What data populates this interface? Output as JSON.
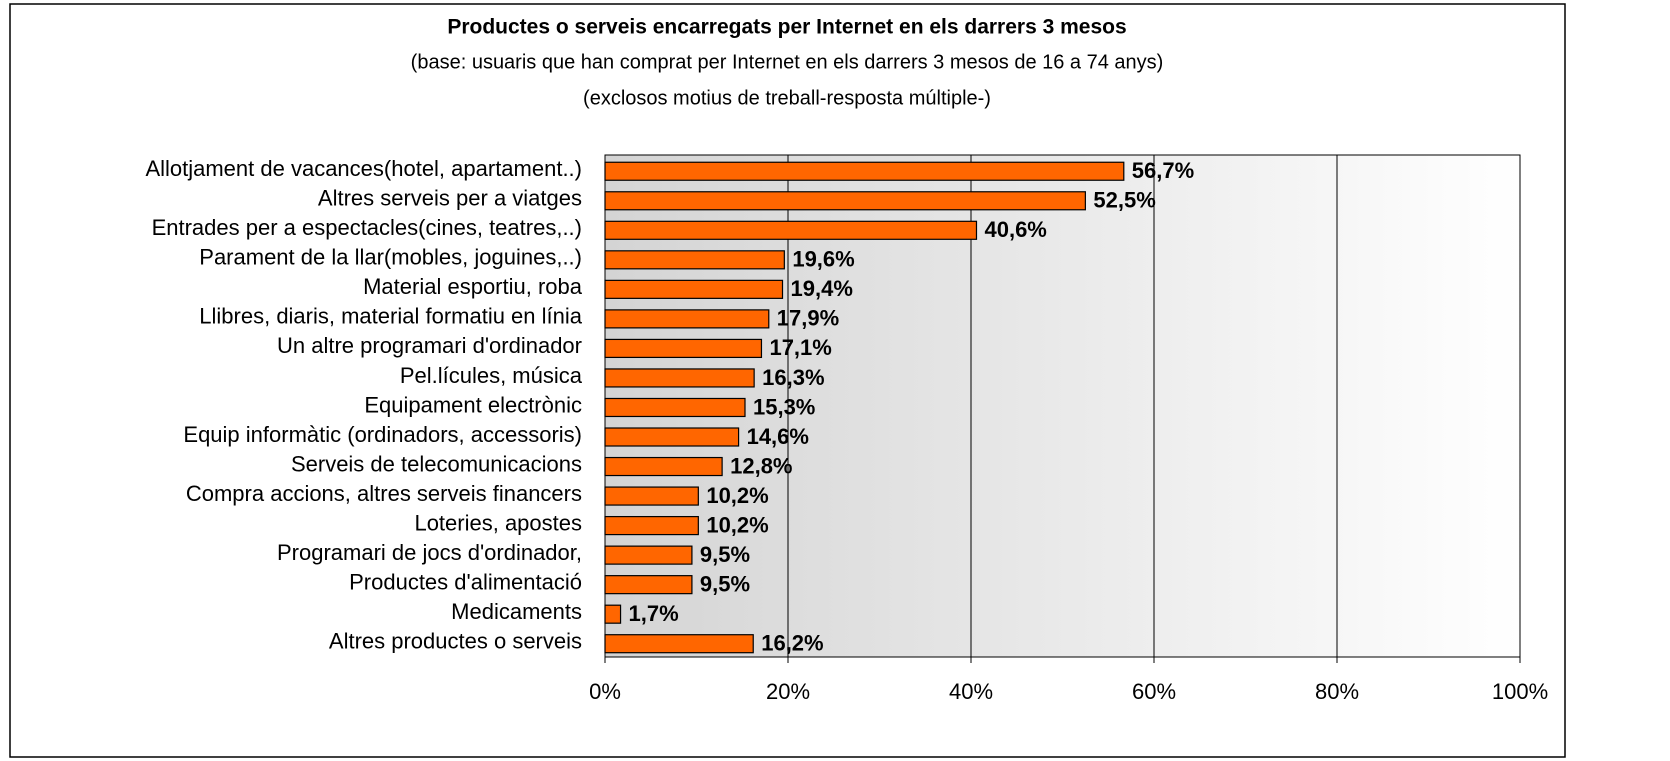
{
  "chart_data": {
    "type": "bar",
    "orientation": "horizontal",
    "title": "Productes o serveis encarregats per Internet en els darrers 3 mesos",
    "subtitle": [
      "(base: usuaris que han comprat per Internet en els darrers 3 mesos de 16 a 74 anys)",
      "(exclosos motius de treball-resposta múltiple-)"
    ],
    "categories": [
      "Allotjament de vacances(hotel, apartament..)",
      "Altres serveis per a viatges",
      "Entrades per a espectacles(cines, teatres,..)",
      "Parament de la llar(mobles, joguines,..)",
      "Material esportiu, roba",
      "Llibres, diaris, material formatiu en línia",
      "Un altre programari d'ordinador",
      "Pel.lícules, música",
      "Equipament electrònic",
      "Equip informàtic (ordinadors, accessoris)",
      "Serveis de telecomunicacions",
      "Compra accions, altres serveis financers",
      "Loteries, apostes",
      "Programari de jocs d'ordinador,",
      "Productes d'alimentació",
      "Medicaments",
      "Altres productes o serveis"
    ],
    "values": [
      56.7,
      52.5,
      40.6,
      19.6,
      19.4,
      17.9,
      17.1,
      16.3,
      15.3,
      14.6,
      12.8,
      10.2,
      10.2,
      9.5,
      9.5,
      1.7,
      16.2
    ],
    "value_labels": [
      "56,7%",
      "52,5%",
      "40,6%",
      "19,6%",
      "19,4%",
      "17,9%",
      "17,1%",
      "16,3%",
      "15,3%",
      "14,6%",
      "12,8%",
      "10,2%",
      "10,2%",
      "9,5%",
      "9,5%",
      "1,7%",
      "16,2%"
    ],
    "color": "#ff6600",
    "xlim": [
      0,
      100
    ],
    "xticks": [
      {
        "value": 0,
        "label": "0%"
      },
      {
        "value": 20,
        "label": "20%"
      },
      {
        "value": 40,
        "label": "40%"
      },
      {
        "value": 60,
        "label": "60%"
      },
      {
        "value": 80,
        "label": "80%"
      },
      {
        "value": 100,
        "label": "100%"
      }
    ],
    "grid": true
  }
}
